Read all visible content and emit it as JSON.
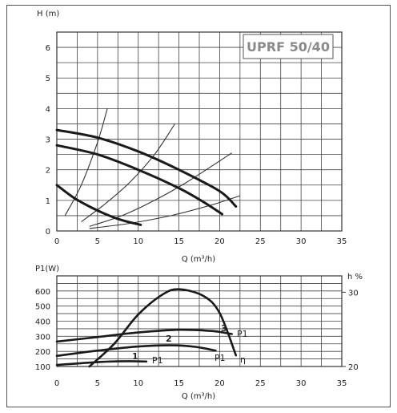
{
  "chart_data": [
    {
      "type": "line",
      "title": "UPRF 50/40",
      "ylabel": "H (m)",
      "xlabel": "Q (m³/h)",
      "xlim": [
        0,
        35
      ],
      "ylim": [
        0,
        6.5
      ],
      "xticks": [
        0,
        5,
        10,
        15,
        20,
        25,
        30,
        35
      ],
      "yticks": [
        0,
        1,
        2,
        3,
        4,
        5,
        6
      ],
      "grid": true,
      "pump_curves": [
        {
          "points": [
            [
              0,
              3.3
            ],
            [
              5,
              3.05
            ],
            [
              10,
              2.6
            ],
            [
              15,
              2.0
            ],
            [
              20,
              1.3
            ],
            [
              22,
              0.8
            ]
          ]
        },
        {
          "points": [
            [
              0,
              2.8
            ],
            [
              5,
              2.5
            ],
            [
              10,
              2.0
            ],
            [
              15,
              1.4
            ],
            [
              18,
              0.95
            ],
            [
              20.3,
              0.55
            ]
          ]
        },
        {
          "points": [
            [
              0,
              1.5
            ],
            [
              2,
              1.1
            ],
            [
              4,
              0.8
            ],
            [
              6,
              0.55
            ],
            [
              8,
              0.35
            ],
            [
              10.3,
              0.2
            ]
          ]
        }
      ],
      "system_curves": [
        {
          "points": [
            [
              1,
              0.5
            ],
            [
              3,
              1.5
            ],
            [
              5,
              2.9
            ],
            [
              6.2,
              4.0
            ]
          ]
        },
        {
          "points": [
            [
              3,
              0.3
            ],
            [
              6,
              0.9
            ],
            [
              9,
              1.6
            ],
            [
              12,
              2.5
            ],
            [
              14.5,
              3.5
            ]
          ]
        },
        {
          "points": [
            [
              4,
              0.15
            ],
            [
              8,
              0.5
            ],
            [
              12,
              1.0
            ],
            [
              16,
              1.6
            ],
            [
              21.5,
              2.55
            ]
          ]
        },
        {
          "points": [
            [
              4,
              0.08
            ],
            [
              9,
              0.25
            ],
            [
              14,
              0.5
            ],
            [
              19,
              0.85
            ],
            [
              22.5,
              1.15
            ]
          ]
        }
      ]
    },
    {
      "type": "line",
      "ylabel": "P1(W)",
      "ylabel_right": "h %",
      "xlabel": "Q (m³/h)",
      "xlim": [
        0,
        35
      ],
      "ylim": [
        100,
        700
      ],
      "xticks": [
        0,
        5,
        10,
        15,
        20,
        25,
        30,
        35
      ],
      "yticks": [
        100,
        200,
        300,
        400,
        500,
        600
      ],
      "yticks_right": [
        20,
        30
      ],
      "y2lim": [
        20,
        30
      ],
      "grid": true,
      "series": [
        {
          "name": "1",
          "label": "P1",
          "axis": "left",
          "points": [
            [
              0,
              110
            ],
            [
              3,
              122
            ],
            [
              6,
              132
            ],
            [
              9,
              135
            ],
            [
              11,
              133
            ]
          ]
        },
        {
          "name": "2",
          "label": "P1",
          "axis": "left",
          "points": [
            [
              0,
              170
            ],
            [
              5,
              205
            ],
            [
              10,
              232
            ],
            [
              14,
              240
            ],
            [
              17,
              230
            ],
            [
              19.5,
              205
            ]
          ]
        },
        {
          "name": "3",
          "label": "P1",
          "axis": "left",
          "points": [
            [
              0,
              265
            ],
            [
              5,
              295
            ],
            [
              10,
              325
            ],
            [
              15,
              343
            ],
            [
              19,
              335
            ],
            [
              21.5,
              315
            ]
          ]
        },
        {
          "label": "η",
          "axis": "right",
          "points": [
            [
              4,
              20
            ],
            [
              7,
              23
            ],
            [
              10,
              27
            ],
            [
              13,
              29.7
            ],
            [
              15,
              30.4
            ],
            [
              18,
              29.5
            ],
            [
              20,
              27.2
            ],
            [
              22,
              21.5
            ]
          ]
        }
      ]
    }
  ]
}
